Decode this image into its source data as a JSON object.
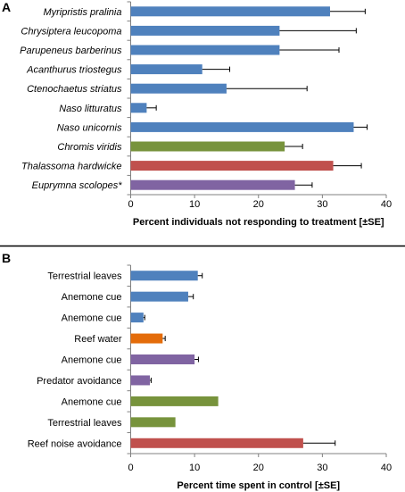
{
  "colors": {
    "blue": "#4f81bd",
    "green": "#77933c",
    "red": "#c0504d",
    "purple": "#8064a2",
    "orange": "#e46c0a",
    "axis": "#808080",
    "error": "#000000"
  },
  "chart_data": [
    {
      "panel": "A",
      "type": "bar",
      "orientation": "horizontal",
      "italic_categories": true,
      "categories": [
        "Myripristis pralinia",
        "Chrysiptera leucopoma",
        "Parupeneus barberinus",
        "Acanthurus triostegus",
        "Ctenochaetus striatus",
        "Naso litturatus",
        "Naso unicornis",
        "Chromis viridis",
        "Thalassoma hardwicke",
        "Euprymna scolopes*"
      ],
      "values": [
        31.2,
        23.3,
        23.3,
        11.2,
        15.0,
        2.5,
        34.9,
        24.1,
        31.7,
        25.7
      ],
      "errors": [
        5.5,
        12.0,
        9.3,
        4.3,
        12.6,
        1.5,
        2.1,
        2.8,
        4.4,
        2.7
      ],
      "colors": [
        "blue",
        "blue",
        "blue",
        "blue",
        "blue",
        "blue",
        "blue",
        "green",
        "red",
        "purple"
      ],
      "xlabel": "Percent individuals not responding to treatment [±SE]",
      "xlim": [
        0,
        40
      ],
      "xticks": [
        0,
        10,
        20,
        30,
        40
      ],
      "grid": false
    },
    {
      "panel": "B",
      "type": "bar",
      "orientation": "horizontal",
      "italic_categories": false,
      "categories": [
        "Terrestrial leaves",
        "Anemone cue",
        "Anemone cue",
        "Reef water",
        "Anemone cue",
        "Predator avoidance",
        "Anemone cue",
        "Terrestrial leaves",
        "Reef noise avoidance"
      ],
      "values": [
        10.5,
        9.0,
        2.0,
        5.0,
        10.0,
        3.0,
        13.7,
        7.0,
        27.0
      ],
      "errors": [
        0.7,
        0.8,
        0.2,
        0.4,
        0.6,
        0.2,
        0.0,
        0.0,
        5.0
      ],
      "colors": [
        "blue",
        "blue",
        "blue",
        "orange",
        "purple",
        "purple",
        "green",
        "green",
        "red"
      ],
      "xlabel": "Percent time spent in control [±SE]",
      "xlim": [
        0,
        40
      ],
      "xticks": [
        0,
        10,
        20,
        30,
        40
      ],
      "grid": false
    }
  ]
}
